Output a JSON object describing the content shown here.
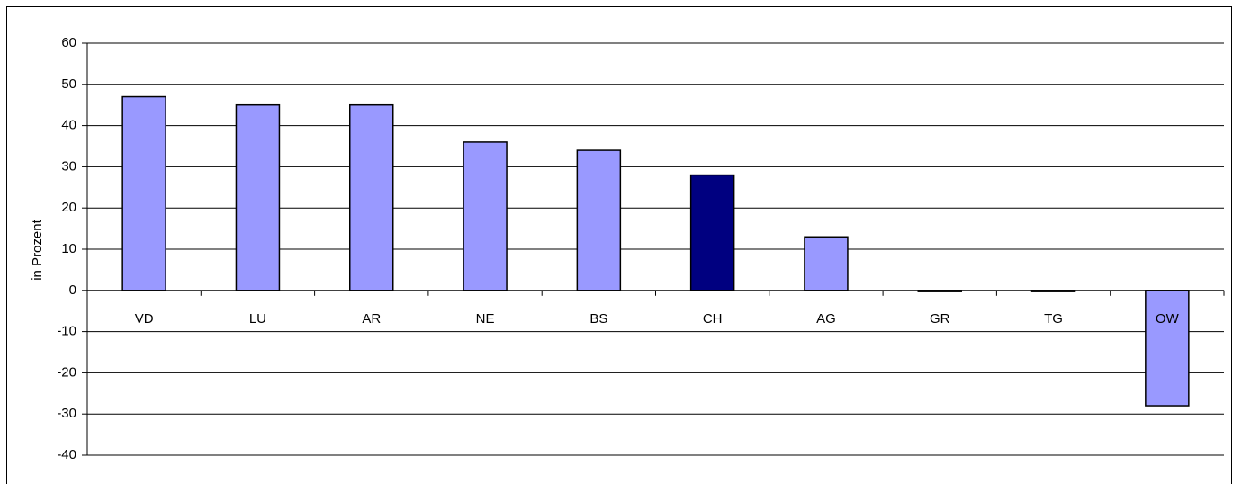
{
  "chart_data": {
    "type": "bar",
    "y_label": "in Prozent",
    "categories": [
      "VD",
      "LU",
      "AR",
      "NE",
      "BS",
      "CH",
      "AG",
      "GR",
      "TG",
      "OW"
    ],
    "values": [
      47,
      45,
      45,
      36,
      34,
      28,
      13,
      -0.3,
      -0.3,
      -28
    ],
    "colors": [
      "#9999ff",
      "#9999ff",
      "#9999ff",
      "#9999ff",
      "#9999ff",
      "#000080",
      "#9999ff",
      "#9999ff",
      "#9999ff",
      "#9999ff"
    ],
    "ylim": [
      -40,
      60
    ],
    "yticks": [
      -40,
      -30,
      -20,
      -10,
      0,
      10,
      20,
      30,
      40,
      50,
      60
    ],
    "grid": true
  }
}
